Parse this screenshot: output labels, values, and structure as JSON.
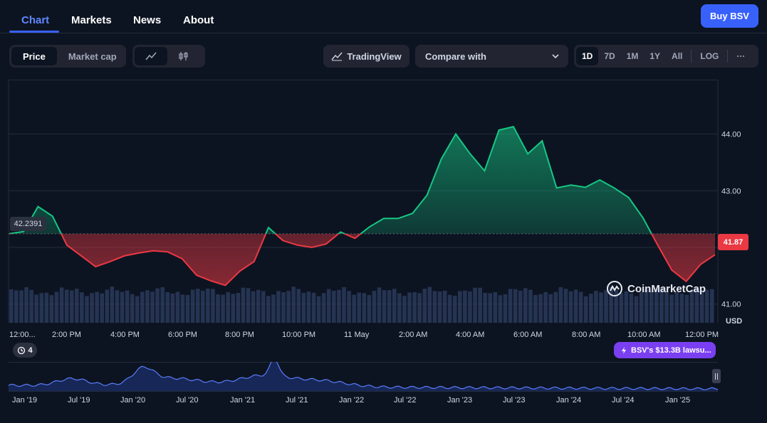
{
  "nav": {
    "tabs": [
      {
        "label": "Chart"
      },
      {
        "label": "Markets"
      },
      {
        "label": "News"
      },
      {
        "label": "About"
      }
    ],
    "buy_label": "Buy BSV"
  },
  "toolbar": {
    "price_label": "Price",
    "market_cap_label": "Market cap",
    "line_icon": "line-chart-icon",
    "candle_icon": "candlestick-icon",
    "tradingview_label": "TradingView",
    "compare_label": "Compare with",
    "ranges": [
      "1D",
      "7D",
      "1M",
      "1Y",
      "All"
    ],
    "active_range": "1D",
    "log_label": "LOG",
    "more_label": "···"
  },
  "chart": {
    "y_ticks": [
      "44.00",
      "43.00",
      "41.00"
    ],
    "y_unit": "USD",
    "x_ticks": [
      "12:00...",
      "2:00 PM",
      "4:00 PM",
      "6:00 PM",
      "8:00 PM",
      "10:00 PM",
      "11 May",
      "2:00 AM",
      "4:00 AM",
      "6:00 AM",
      "8:00 AM",
      "10:00 AM",
      "12:00 PM"
    ],
    "start_price": "42.2391",
    "current_price": "41.87",
    "watermark": "CoinMarketCap",
    "colors": {
      "up": "#16c784",
      "down": "#ea3943",
      "accent": "#3861fb"
    }
  },
  "events_count": "4",
  "news_pill": "BSV's $13.3B lawsu...",
  "navigator": {
    "x_ticks": [
      "Jan '19",
      "Jul '19",
      "Jan '20",
      "Jul '20",
      "Jan '21",
      "Jul '21",
      "Jan '22",
      "Jul '22",
      "Jan '23",
      "Jul '23",
      "Jan '24",
      "Jul '24",
      "Jan '25"
    ]
  },
  "chart_data": {
    "type": "line",
    "ylabel": "USD",
    "baseline": 42.2391,
    "ylim": [
      40.67,
      44.96
    ],
    "x": [
      "12:00",
      "12:30",
      "13:00",
      "13:30",
      "14:00",
      "14:30",
      "15:00",
      "15:30",
      "16:00",
      "16:30",
      "17:00",
      "17:30",
      "18:00",
      "18:30",
      "19:00",
      "19:30",
      "20:00",
      "20:30",
      "21:00",
      "21:30",
      "22:00",
      "22:30",
      "23:00",
      "23:30",
      "00:00",
      "00:30",
      "01:00",
      "01:30",
      "02:00",
      "02:30",
      "03:00",
      "03:30",
      "04:00",
      "04:30",
      "05:00",
      "05:30",
      "06:00",
      "06:30",
      "07:00",
      "07:30",
      "08:00",
      "08:30",
      "09:00",
      "09:30",
      "10:00",
      "10:30",
      "11:00",
      "11:30",
      "12:00",
      "12:15"
    ],
    "series": [
      {
        "values": [
          42.24,
          42.28,
          42.72,
          42.55,
          42.04,
          41.85,
          41.66,
          41.75,
          41.85,
          41.9,
          41.94,
          41.92,
          41.8,
          41.51,
          41.41,
          41.33,
          41.58,
          41.75,
          42.35,
          42.12,
          42.04,
          42.0,
          42.06,
          42.27,
          42.16,
          42.36,
          42.51,
          42.51,
          42.6,
          42.92,
          43.56,
          44.0,
          43.65,
          43.35,
          44.07,
          44.13,
          43.65,
          43.88,
          43.05,
          43.1,
          43.06,
          43.19,
          43.05,
          42.88,
          42.52,
          42.05,
          41.6,
          41.4,
          41.7,
          41.87
        ]
      }
    ]
  }
}
